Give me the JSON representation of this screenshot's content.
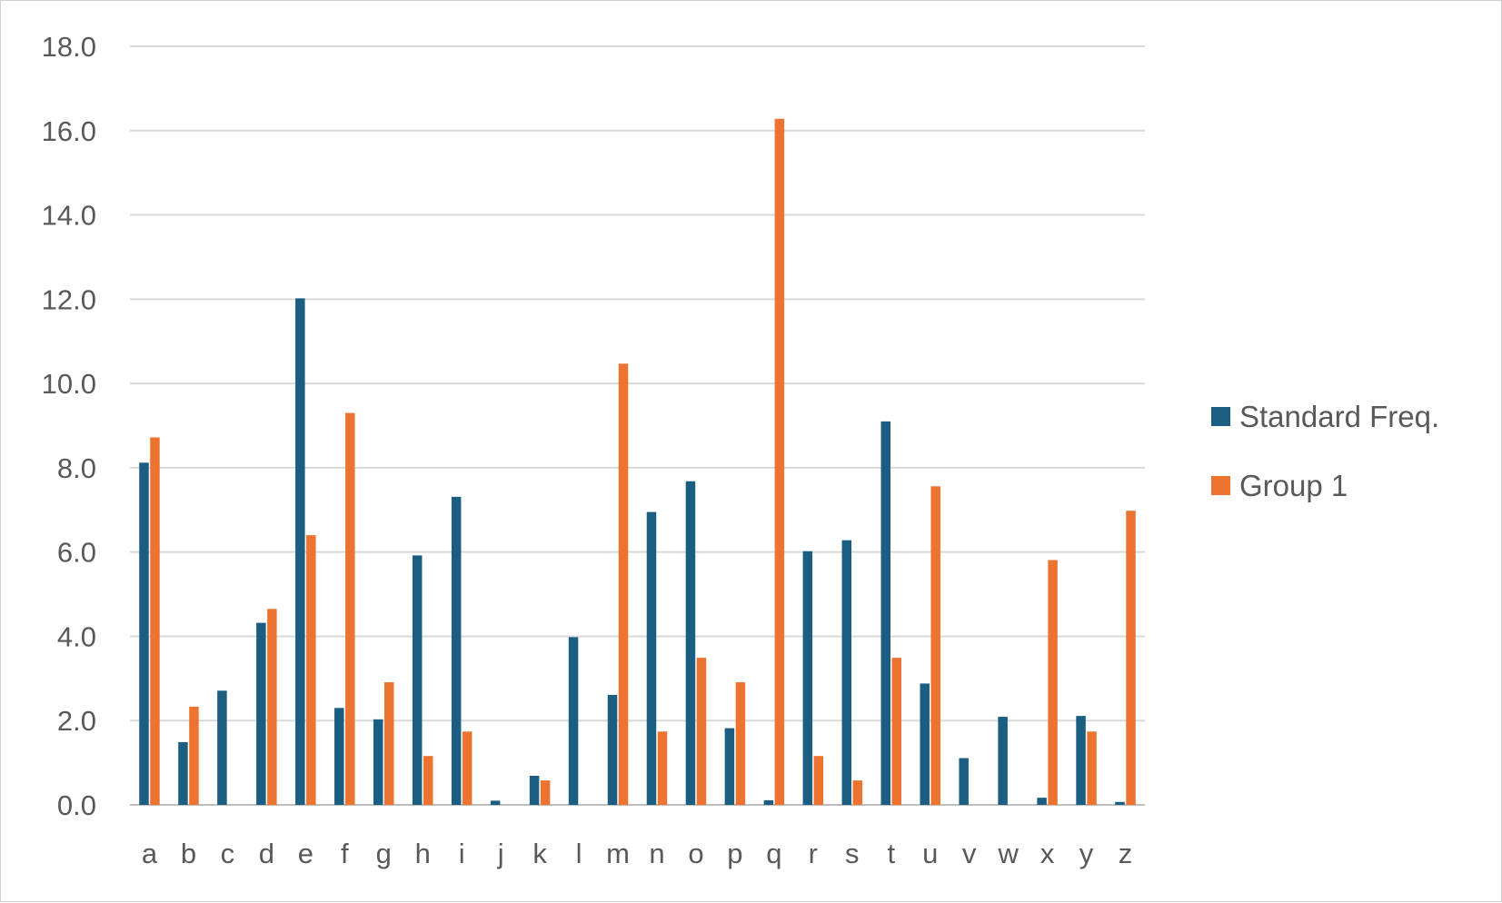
{
  "chart_data": {
    "type": "bar",
    "categories": [
      "a",
      "b",
      "c",
      "d",
      "e",
      "f",
      "g",
      "h",
      "i",
      "j",
      "k",
      "l",
      "m",
      "n",
      "o",
      "p",
      "q",
      "r",
      "s",
      "t",
      "u",
      "v",
      "w",
      "x",
      "y",
      "z"
    ],
    "series": [
      {
        "name": "Standard Freq.",
        "color": "#1b5e82",
        "values": [
          8.12,
          1.49,
          2.71,
          4.32,
          12.02,
          2.3,
          2.03,
          5.92,
          7.31,
          0.1,
          0.69,
          3.98,
          2.61,
          6.95,
          7.68,
          1.82,
          0.11,
          6.02,
          6.28,
          9.1,
          2.88,
          1.11,
          2.09,
          0.17,
          2.11,
          0.07
        ]
      },
      {
        "name": "Group 1",
        "color": "#ed7430",
        "values": [
          8.72,
          2.33,
          0.0,
          4.65,
          6.4,
          9.3,
          2.91,
          1.16,
          1.74,
          0.0,
          0.58,
          0.0,
          10.47,
          1.74,
          3.49,
          2.91,
          16.28,
          1.16,
          0.58,
          3.49,
          7.56,
          0.0,
          0.0,
          5.81,
          1.74,
          6.98
        ]
      }
    ],
    "y_ticks": [
      "0.0",
      "2.0",
      "4.0",
      "6.0",
      "8.0",
      "10.0",
      "12.0",
      "14.0",
      "16.0",
      "18.0"
    ],
    "ylim": [
      0,
      18
    ],
    "title": "",
    "xlabel": "",
    "ylabel": "",
    "grid": true,
    "legend_position": "right"
  }
}
